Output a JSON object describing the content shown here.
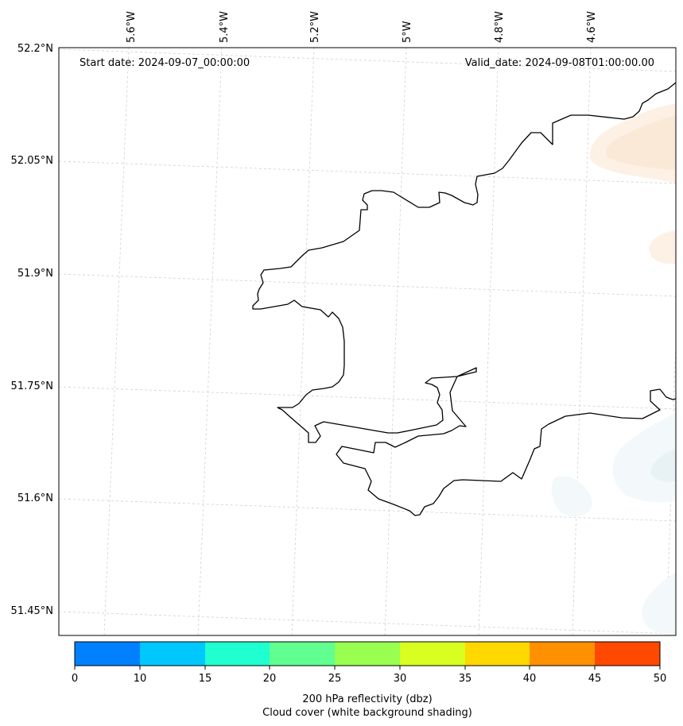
{
  "map": {
    "start_date_label": "Start date: 2024-09-07_00:00:00",
    "valid_date_label": "Valid_date: 2024-09-08T01:00:00.00",
    "longitude_labels": [
      "5.6°W",
      "5.4°W",
      "5.2°W",
      "5°W",
      "4.8°W",
      "4.6°W"
    ],
    "latitude_labels": [
      "52.2°N",
      "52.05°N",
      "51.9°N",
      "51.75°N",
      "51.6°N",
      "51.45°N"
    ],
    "gridlines": true,
    "coastline_color": "#000000"
  },
  "colorbar": {
    "ticks": [
      "0",
      "10",
      "15",
      "20",
      "25",
      "30",
      "35",
      "40",
      "45",
      "50"
    ],
    "colors": [
      "#0080ff",
      "#00c8ff",
      "#20ffd0",
      "#60ff90",
      "#98ff50",
      "#d8ff20",
      "#ffd800",
      "#ff9000",
      "#ff4800"
    ],
    "label_line1": "200 hPa reflectivity (dbz)",
    "label_line2": "Cloud cover (white background shading)"
  }
}
